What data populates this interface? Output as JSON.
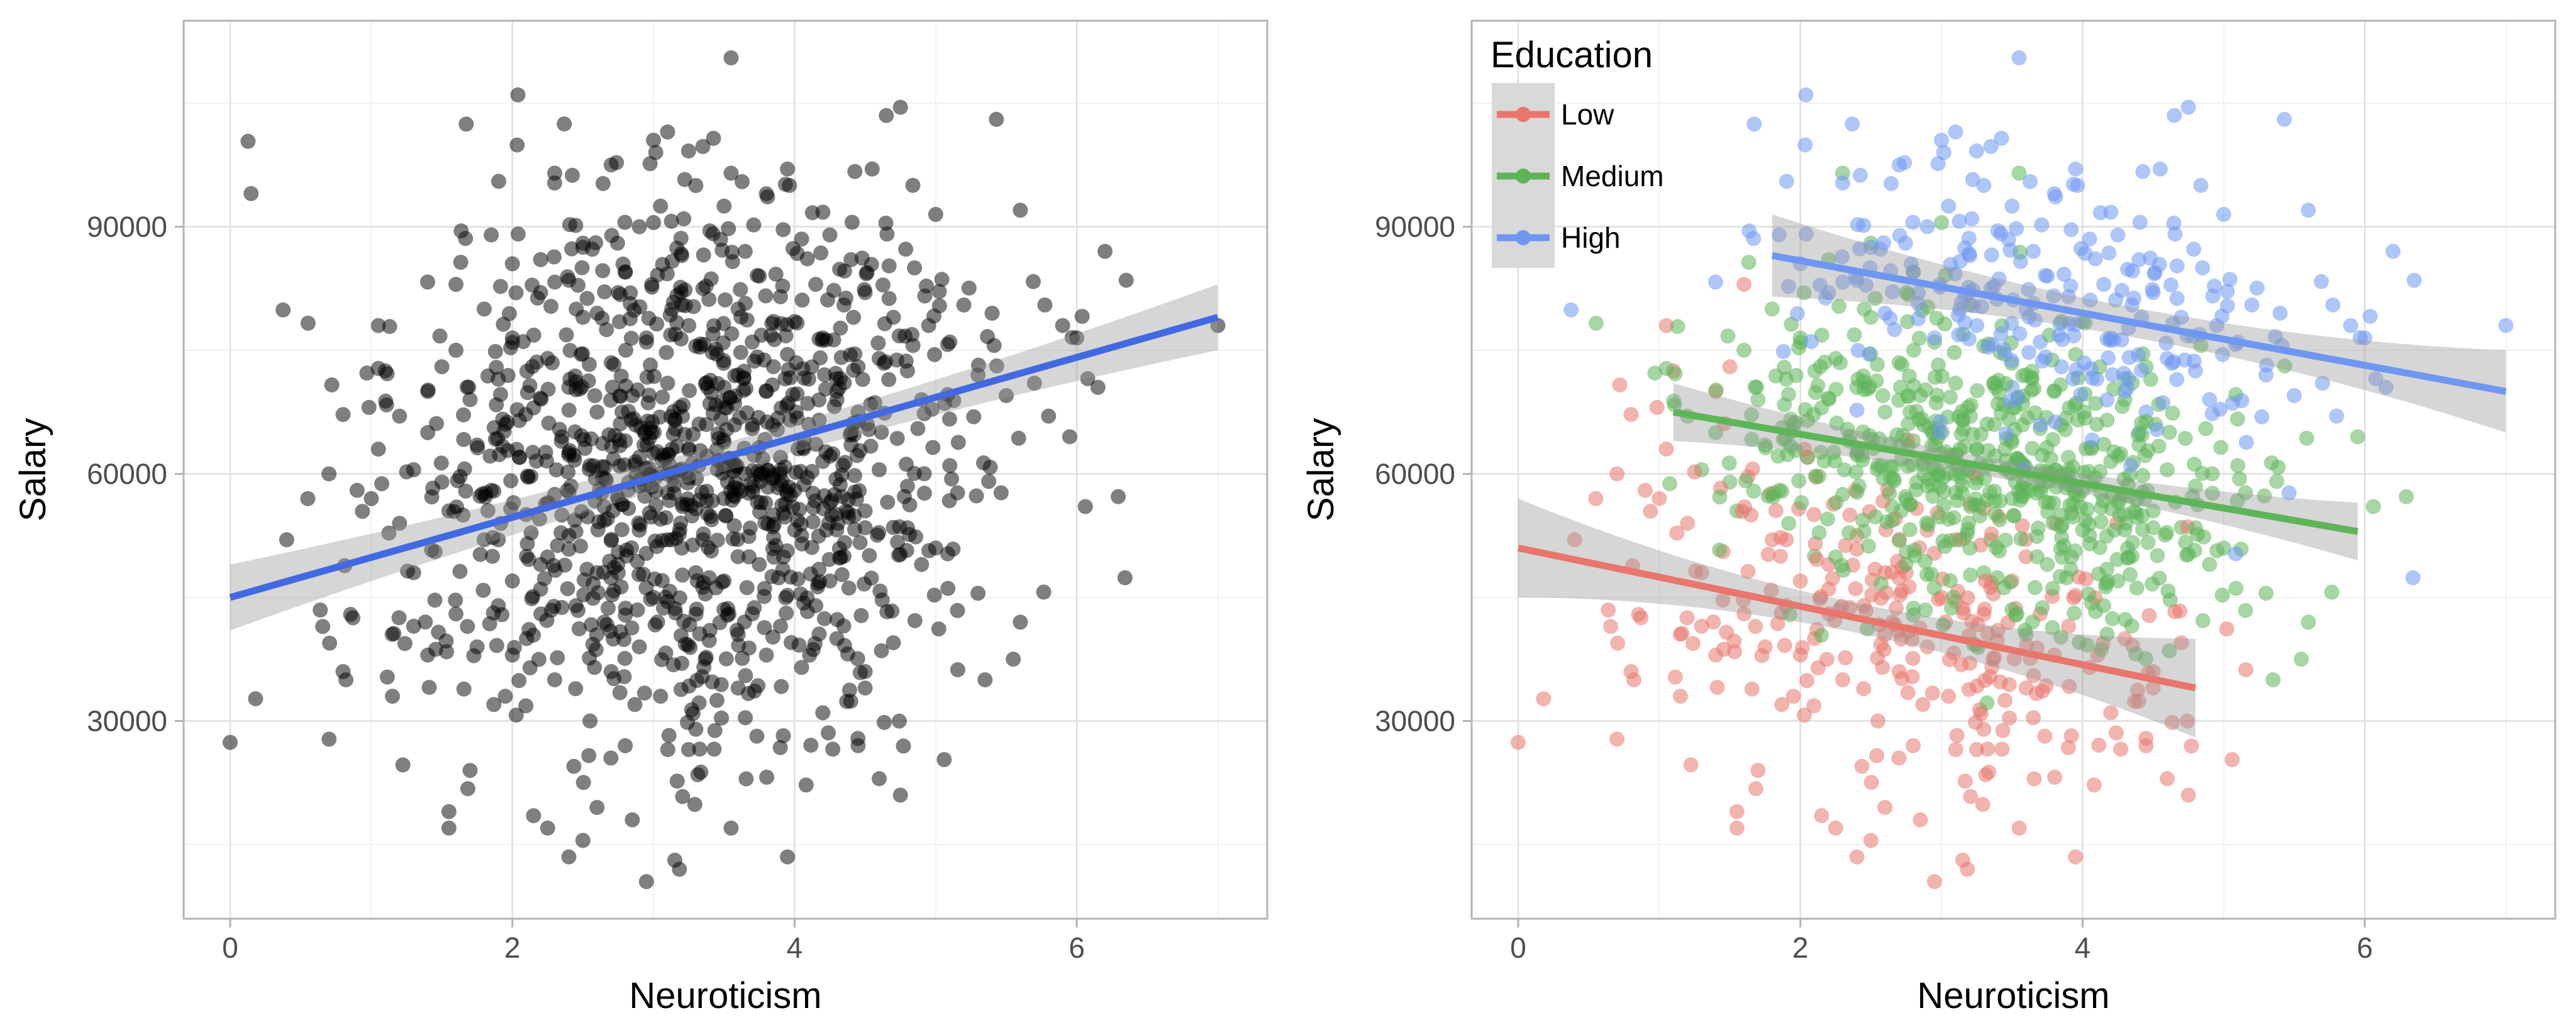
{
  "chart_data": [
    {
      "type": "scatter",
      "title": "",
      "xlabel": "Neuroticism",
      "ylabel": "Salary",
      "xlim": [
        -0.33,
        7.35
      ],
      "ylim": [
        6000,
        115000
      ],
      "xticks": [
        0,
        2,
        4,
        6
      ],
      "yticks": [
        30000,
        60000,
        90000
      ],
      "grid": true,
      "legend": null,
      "point_color": "#000000",
      "point_alpha": 0.5,
      "fit_color": "#4169E1",
      "fit": {
        "x": [
          0,
          7
        ],
        "y": [
          45000,
          79000
        ],
        "ci": [
          3800,
          4000
        ]
      },
      "points_shown": "approx. 1000 points, dense cloud centered near (3.2, 60000)"
    },
    {
      "type": "scatter",
      "title": "",
      "xlabel": "Neuroticism",
      "ylabel": "Salary",
      "xlim": [
        -0.33,
        7.35
      ],
      "ylim": [
        6000,
        115000
      ],
      "xticks": [
        0,
        2,
        4,
        6
      ],
      "yticks": [
        30000,
        60000,
        90000
      ],
      "grid": true,
      "legend": {
        "title": "Education",
        "placement": "top-left"
      },
      "series": [
        {
          "name": "Low",
          "color": "#E8766D",
          "fit": {
            "x": [
              0,
              4.8
            ],
            "y": [
              51000,
              34000
            ],
            "ci": [
              4000,
              6000
            ]
          }
        },
        {
          "name": "Medium",
          "color": "#5DB558",
          "fit": {
            "x": [
              1.1,
              5.95
            ],
            "y": [
              67500,
              53000
            ],
            "ci": [
              2500,
              3500
            ]
          }
        },
        {
          "name": "High",
          "color": "#6E97F2",
          "fit": {
            "x": [
              1.8,
              7
            ],
            "y": [
              86500,
              70000
            ],
            "ci": [
              4000,
              5000
            ]
          }
        }
      ]
    }
  ],
  "samples": [
    [
      0,
      27400,
      0
    ],
    [
      0.18,
      32700,
      0
    ],
    [
      0.4,
      52000,
      0
    ],
    [
      0.55,
      57000,
      0
    ],
    [
      0.7,
      60000,
      0
    ],
    [
      0.72,
      70800,
      0
    ],
    [
      0.8,
      67200,
      0
    ],
    [
      0.8,
      36000,
      0
    ],
    [
      0.82,
      35000,
      0
    ],
    [
      0.9,
      58000,
      0
    ],
    [
      1.0,
      57000,
      0
    ],
    [
      1.05,
      78000,
      0
    ],
    [
      1.05,
      63000,
      0
    ],
    [
      1.1,
      72500,
      0
    ],
    [
      1.15,
      33000,
      0
    ],
    [
      1.2,
      54000,
      0
    ],
    [
      1.3,
      48000,
      0
    ],
    [
      1.4,
      70000,
      0
    ],
    [
      1.4,
      38000,
      0
    ],
    [
      1.5,
      73000,
      0
    ],
    [
      1.55,
      19000,
      0
    ],
    [
      1.55,
      17000,
      0
    ],
    [
      1.6,
      43000,
      0
    ],
    [
      1.6,
      83000,
      0
    ],
    [
      1.7,
      24000,
      0
    ],
    [
      1.75,
      39000,
      0
    ],
    [
      1.8,
      52000,
      0
    ],
    [
      1.9,
      44000,
      0
    ],
    [
      1.95,
      33000,
      0
    ],
    [
      2.0,
      47000,
      0
    ],
    [
      2.05,
      62000,
      0
    ],
    [
      2.1,
      40000,
      0
    ],
    [
      2.15,
      18500,
      0
    ],
    [
      2.2,
      49000,
      0
    ],
    [
      2.25,
      17000,
      0
    ],
    [
      2.3,
      35000,
      0
    ],
    [
      2.35,
      55000,
      0
    ],
    [
      2.4,
      13500,
      0
    ],
    [
      2.45,
      44000,
      0
    ],
    [
      2.5,
      15500,
      0
    ],
    [
      2.55,
      30000,
      0
    ],
    [
      2.6,
      19500,
      0
    ],
    [
      2.65,
      42000,
      0
    ],
    [
      2.7,
      36000,
      0
    ],
    [
      2.75,
      48000,
      0
    ],
    [
      2.8,
      27000,
      0
    ],
    [
      2.85,
      18000,
      0
    ],
    [
      2.9,
      39000,
      0
    ],
    [
      2.95,
      10500,
      0
    ],
    [
      3.0,
      45000,
      0
    ],
    [
      3.05,
      33000,
      0
    ],
    [
      3.1,
      52000,
      0
    ],
    [
      3.2,
      37000,
      0
    ],
    [
      3.3,
      29000,
      0
    ],
    [
      3.4,
      41000,
      0
    ],
    [
      3.5,
      47000,
      0
    ],
    [
      3.55,
      17000,
      0
    ],
    [
      3.6,
      34000,
      0
    ],
    [
      3.7,
      43000,
      0
    ],
    [
      3.8,
      38000,
      0
    ],
    [
      3.95,
      13500,
      0
    ],
    [
      4.05,
      36500,
      0
    ],
    [
      4.2,
      31000,
      0
    ],
    [
      4.3,
      40000,
      0
    ],
    [
      4.45,
      27000,
      0
    ],
    [
      4.5,
      34000,
      0
    ],
    [
      4.6,
      23000,
      0
    ],
    [
      4.7,
      39500,
      0
    ],
    [
      4.75,
      21000,
      0
    ],
    [
      4.5,
      36000,
      0
    ],
    [
      2.6,
      48000,
      0
    ],
    [
      2.2,
      46000,
      0
    ],
    [
      1.9,
      52000,
      0
    ],
    [
      3.1,
      44500,
      0
    ],
    [
      3.45,
      32500,
      0
    ],
    [
      2.0,
      38000,
      0
    ],
    [
      1.3,
      41500,
      0
    ],
    [
      1.65,
      55000,
      0
    ],
    [
      2.4,
      52500,
      0
    ],
    [
      3.9,
      41500,
      0
    ],
    [
      1.05,
      72800,
      1
    ],
    [
      1.2,
      67000,
      1
    ],
    [
      1.3,
      60500,
      1
    ],
    [
      1.4,
      65000,
      1
    ],
    [
      1.5,
      59000,
      1
    ],
    [
      1.55,
      55500,
      1
    ],
    [
      1.6,
      75000,
      1
    ],
    [
      1.7,
      69000,
      1
    ],
    [
      1.75,
      63500,
      1
    ],
    [
      1.8,
      80000,
      1
    ],
    [
      1.85,
      58000,
      1
    ],
    [
      1.9,
      71500,
      1
    ],
    [
      1.95,
      66000,
      1
    ],
    [
      2.0,
      76500,
      1
    ],
    [
      2.05,
      62000,
      1
    ],
    [
      2.1,
      50000,
      1
    ],
    [
      2.15,
      68000,
      1
    ],
    [
      2.2,
      86000,
      1
    ],
    [
      2.25,
      74000,
      1
    ],
    [
      2.3,
      57500,
      1
    ],
    [
      2.3,
      96500,
      1
    ],
    [
      2.35,
      64500,
      1
    ],
    [
      2.4,
      70500,
      1
    ],
    [
      2.45,
      53000,
      1
    ],
    [
      2.5,
      79000,
      1
    ],
    [
      2.55,
      61000,
      1
    ],
    [
      2.6,
      67500,
      1
    ],
    [
      2.65,
      56000,
      1
    ],
    [
      2.7,
      73500,
      1
    ],
    [
      2.75,
      50500,
      1
    ],
    [
      2.8,
      64000,
      1
    ],
    [
      2.85,
      69500,
      1
    ],
    [
      2.9,
      58500,
      1
    ],
    [
      2.95,
      76000,
      1
    ],
    [
      3.0,
      62500,
      1
    ],
    [
      3.05,
      54500,
      1
    ],
    [
      3.1,
      71000,
      1
    ],
    [
      3.15,
      66500,
      1
    ],
    [
      3.2,
      80500,
      1
    ],
    [
      3.25,
      59500,
      1
    ],
    [
      3.3,
      75500,
      1
    ],
    [
      3.35,
      52000,
      1
    ],
    [
      3.4,
      68500,
      1
    ],
    [
      3.45,
      63000,
      1
    ],
    [
      3.5,
      57000,
      1
    ],
    [
      3.55,
      96500,
      1
    ],
    [
      3.6,
      72000,
      1
    ],
    [
      3.65,
      60000,
      1
    ],
    [
      3.7,
      65500,
      1
    ],
    [
      3.75,
      49000,
      1
    ],
    [
      3.8,
      70000,
      1
    ],
    [
      3.85,
      55000,
      1
    ],
    [
      3.9,
      62000,
      1
    ],
    [
      3.95,
      74500,
      1
    ],
    [
      4.0,
      58000,
      1
    ],
    [
      4.05,
      52500,
      1
    ],
    [
      4.1,
      66000,
      1
    ],
    [
      4.15,
      44000,
      1
    ],
    [
      4.2,
      61500,
      1
    ],
    [
      4.25,
      56500,
      1
    ],
    [
      4.3,
      69000,
      1
    ],
    [
      4.35,
      50000,
      1
    ],
    [
      4.4,
      63500,
      1
    ],
    [
      4.5,
      55500,
      1
    ],
    [
      4.6,
      60500,
      1
    ],
    [
      4.7,
      53500,
      1
    ],
    [
      4.8,
      58500,
      1
    ],
    [
      4.9,
      49000,
      1
    ],
    [
      5.0,
      51000,
      1
    ],
    [
      5.1,
      61000,
      1
    ],
    [
      5.3,
      45500,
      1
    ],
    [
      5.35,
      35000,
      1
    ],
    [
      5.55,
      37500,
      1
    ],
    [
      5.6,
      42000,
      1
    ],
    [
      5.95,
      64500,
      1
    ],
    [
      3.0,
      90500,
      1
    ],
    [
      2.8,
      84500,
      1
    ],
    [
      3.3,
      48000,
      1
    ],
    [
      2.5,
      88000,
      1
    ],
    [
      4.45,
      73000,
      1
    ],
    [
      3.6,
      40500,
      1
    ],
    [
      2.75,
      82000,
      1
    ],
    [
      3.85,
      78500,
      1
    ],
    [
      4.25,
      47000,
      1
    ],
    [
      1.85,
      89000,
      2
    ],
    [
      2.0,
      85500,
      2
    ],
    [
      2.2,
      82000,
      2
    ],
    [
      2.4,
      83500,
      2
    ],
    [
      2.5,
      87500,
      2
    ],
    [
      2.6,
      79500,
      2
    ],
    [
      2.7,
      97500,
      2
    ],
    [
      2.8,
      84500,
      2
    ],
    [
      2.9,
      90000,
      2
    ],
    [
      2.95,
      76500,
      2
    ],
    [
      3.0,
      100500,
      2
    ],
    [
      3.05,
      92500,
      2
    ],
    [
      3.1,
      101500,
      2
    ],
    [
      3.2,
      86500,
      2
    ],
    [
      3.25,
      78000,
      2
    ],
    [
      3.3,
      95000,
      2
    ],
    [
      3.35,
      82500,
      2
    ],
    [
      3.4,
      89500,
      2
    ],
    [
      3.45,
      74500,
      2
    ],
    [
      3.5,
      92500,
      2
    ],
    [
      3.55,
      110500,
      2
    ],
    [
      3.6,
      80000,
      2
    ],
    [
      3.65,
      87000,
      2
    ],
    [
      3.7,
      76000,
      2
    ],
    [
      3.75,
      84000,
      2
    ],
    [
      3.8,
      94000,
      2
    ],
    [
      3.85,
      73000,
      2
    ],
    [
      3.9,
      81500,
      2
    ],
    [
      3.95,
      97000,
      2
    ],
    [
      4.0,
      78500,
      2
    ],
    [
      4.05,
      88500,
      2
    ],
    [
      4.1,
      71500,
      2
    ],
    [
      4.15,
      83000,
      2
    ],
    [
      4.2,
      76500,
      2
    ],
    [
      4.25,
      89000,
      2
    ],
    [
      4.3,
      70000,
      2
    ],
    [
      4.35,
      80500,
      2
    ],
    [
      4.4,
      86000,
      2
    ],
    [
      4.45,
      67500,
      2
    ],
    [
      4.5,
      82000,
      2
    ],
    [
      4.55,
      97000,
      2
    ],
    [
      4.6,
      74000,
      2
    ],
    [
      4.65,
      103500,
      2
    ],
    [
      4.7,
      79000,
      2
    ],
    [
      4.75,
      104500,
      2
    ],
    [
      4.8,
      72500,
      2
    ],
    [
      4.85,
      85000,
      2
    ],
    [
      4.9,
      69000,
      2
    ],
    [
      4.95,
      78000,
      2
    ],
    [
      5.0,
      91500,
      2
    ],
    [
      5.1,
      76000,
      2
    ],
    [
      5.2,
      80500,
      2
    ],
    [
      5.3,
      72000,
      2
    ],
    [
      5.4,
      79500,
      2
    ],
    [
      5.5,
      69500,
      2
    ],
    [
      5.6,
      92000,
      2
    ],
    [
      5.7,
      71000,
      2
    ],
    [
      5.8,
      67000,
      2
    ],
    [
      5.9,
      78000,
      2
    ],
    [
      6.0,
      76500,
      2
    ],
    [
      6.15,
      70500,
      2
    ],
    [
      6.2,
      87000,
      2
    ],
    [
      6.35,
      83500,
      2
    ],
    [
      7.0,
      78000,
      2
    ],
    [
      4.4,
      65000,
      2
    ],
    [
      3.5,
      70500,
      2
    ]
  ]
}
